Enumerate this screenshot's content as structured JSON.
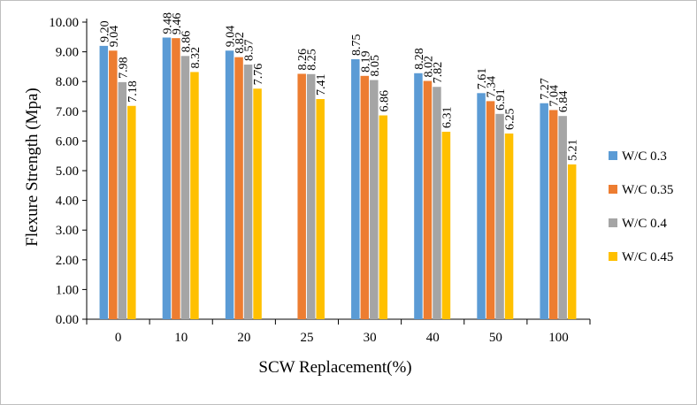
{
  "chart_data": {
    "type": "bar",
    "title": "",
    "xlabel": "SCW Replacement(%)",
    "ylabel": "Flexure Strength (Mpa)",
    "ylim": [
      0,
      10
    ],
    "ytick_step": 1,
    "ytick_labels": [
      "0.00",
      "1.00",
      "2.00",
      "3.00",
      "4.00",
      "5.00",
      "6.00",
      "7.00",
      "8.00",
      "9.00",
      "10.00"
    ],
    "grid": false,
    "legend_position": "right",
    "categories": [
      "0",
      "10",
      "20",
      "25",
      "30",
      "40",
      "50",
      "100"
    ],
    "series": [
      {
        "name": "W/C 0.3",
        "color": "#5B9BD5",
        "values": [
          9.2,
          9.48,
          9.04,
          null,
          8.75,
          8.28,
          7.61,
          7.27
        ],
        "labels": [
          "9.20",
          "9.48",
          "9.04",
          "",
          "8.75",
          "8.28",
          "7.61",
          "7.27"
        ]
      },
      {
        "name": "W/C 0.35",
        "color": "#ED7D31",
        "values": [
          9.04,
          9.46,
          8.82,
          8.26,
          8.19,
          8.02,
          7.34,
          7.04
        ],
        "labels": [
          "9.04",
          "9.46",
          "8.82",
          "8.26",
          "8.19",
          "8.02",
          "7.34",
          "7.04"
        ]
      },
      {
        "name": "W/C 0.4",
        "color": "#A5A5A5",
        "values": [
          7.98,
          8.86,
          8.57,
          8.25,
          8.05,
          7.82,
          6.91,
          6.84
        ],
        "labels": [
          "7.98",
          "8.86",
          "8.57",
          "8.25",
          "8.05",
          "7.82",
          "6.91",
          "6.84"
        ]
      },
      {
        "name": "W/C 0.45",
        "color": "#FFC000",
        "values": [
          7.18,
          8.32,
          7.76,
          7.41,
          6.86,
          6.31,
          6.25,
          5.21
        ],
        "labels": [
          "7.18",
          "8.32",
          "7.76",
          "7.41",
          "6.86",
          "6.31",
          "6.25",
          "5.21"
        ]
      }
    ]
  }
}
